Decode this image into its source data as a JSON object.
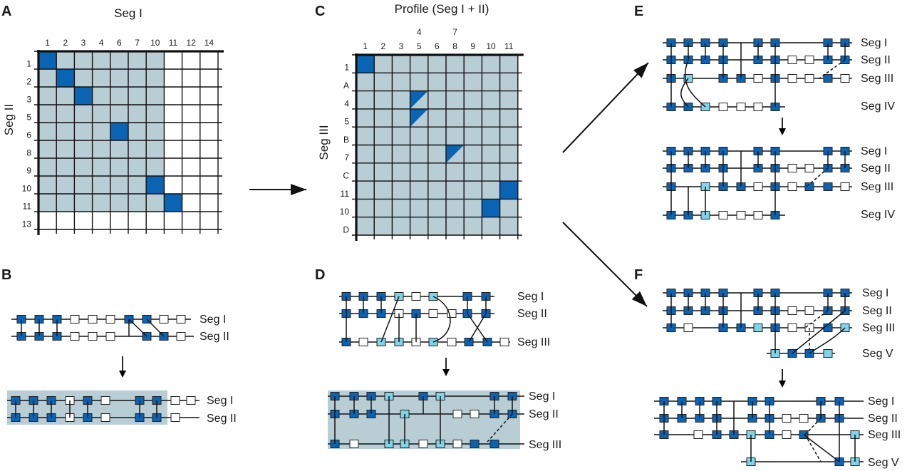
{
  "colors": {
    "dark": "#0a64b4",
    "light": "#7fd4ea",
    "empty": "#ffffff",
    "shade": "#b9cdd5",
    "line": "#111111"
  },
  "panels": {
    "A": "A",
    "B": "B",
    "C": "C",
    "D": "D",
    "E": "E",
    "F": "F"
  },
  "gridA": {
    "title": "Seg I",
    "ylabel": "Seg II",
    "cols": [
      "1",
      "2",
      "3",
      "4",
      "6",
      "7",
      "10",
      "11",
      "12",
      "14"
    ],
    "rows": [
      "1",
      "2",
      "3",
      "5",
      "6",
      "8",
      "9",
      "10",
      "11",
      "13"
    ],
    "shaded": [
      7,
      9
    ],
    "cells": [
      [
        0,
        0
      ],
      [
        1,
        1
      ],
      [
        2,
        2
      ],
      [
        4,
        4
      ],
      [
        6,
        7
      ],
      [
        7,
        8
      ]
    ]
  },
  "gridC": {
    "title": "Profile (Seg I + II)",
    "ylabel": "Seg III",
    "cols": [
      "1",
      "2",
      "3",
      "5",
      "6",
      "8",
      "9",
      "10",
      "11"
    ],
    "extra_top": [
      {
        "col": 3,
        "text": "4"
      },
      {
        "col": 5,
        "text": "7"
      }
    ],
    "rows": [
      "1",
      "A",
      "4",
      "5",
      "B",
      "7",
      "C",
      "11",
      "10",
      "D"
    ],
    "cells": [
      [
        0,
        0
      ],
      [
        8,
        7
      ],
      [
        7,
        8
      ]
    ],
    "half": [
      [
        3,
        2
      ],
      [
        3,
        3
      ],
      [
        5,
        5
      ]
    ]
  },
  "seg_labels": {
    "I": "Seg I",
    "II": "Seg II",
    "III": "Seg III",
    "IV": "Seg IV",
    "V": "Seg V"
  }
}
